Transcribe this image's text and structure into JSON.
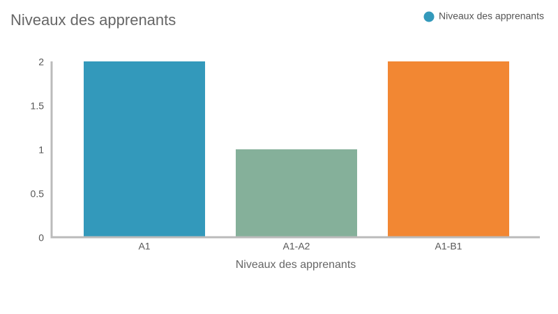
{
  "chart_data": {
    "type": "bar",
    "title": "Niveaux des apprenants",
    "x_label": "Niveaux des apprenants",
    "categories": [
      "A1",
      "A1-A2",
      "A1-B1"
    ],
    "series": [
      {
        "name": "Niveaux des apprenants",
        "color": "#3399bb",
        "values": [
          2,
          1,
          2
        ]
      }
    ],
    "bar_colors": [
      "#3399bb",
      "#85b09a",
      "#f28733"
    ],
    "ylim": [
      0,
      2
    ],
    "yticks": [
      0,
      0.5,
      1,
      1.5,
      2
    ],
    "grid": false,
    "legend": "top-right"
  }
}
